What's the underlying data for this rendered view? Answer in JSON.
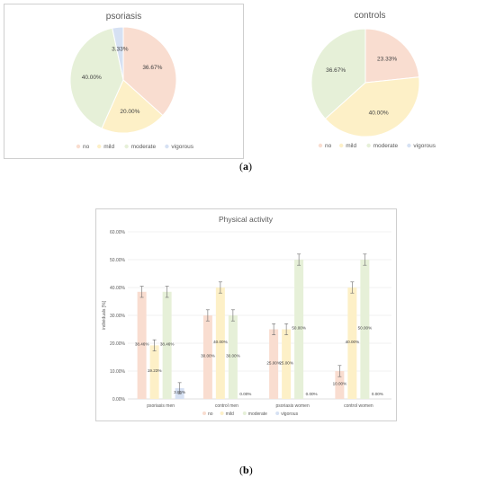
{
  "captions": {
    "a": "a",
    "b": "b"
  },
  "legend": [
    "no",
    "mild",
    "moderate",
    "vigorous"
  ],
  "colors": {
    "no": "#f9ddd0",
    "mild": "#fdf0c7",
    "moderate": "#e6f0d8",
    "vigorous": "#d6e1f3",
    "error_bar": "#6b6b6b"
  },
  "chart_data": [
    {
      "type": "pie",
      "title": "psoriasis",
      "labels": [
        "no",
        "mild",
        "moderate",
        "vigorous"
      ],
      "values": [
        36.67,
        20.0,
        40.0,
        3.33
      ],
      "value_labels": [
        "36.67%",
        "20.00%",
        "40.00%",
        "3.33%"
      ],
      "legend_position": "bottom"
    },
    {
      "type": "pie",
      "title": "controls",
      "labels": [
        "no",
        "mild",
        "moderate",
        "vigorous"
      ],
      "values": [
        23.33,
        40.0,
        36.67,
        0
      ],
      "value_labels": [
        "23.33%",
        "40.00%",
        "36.67%",
        ""
      ],
      "legend_position": "bottom"
    },
    {
      "type": "bar",
      "title": "Physical activity",
      "categories": [
        "psoriasis men",
        "control men",
        "psoriasis women",
        "control women"
      ],
      "series": [
        {
          "name": "no",
          "values": [
            38.46,
            30.0,
            25.0,
            10.0
          ],
          "value_labels": [
            "38.46%",
            "30.00%",
            "25.00%",
            "10.00%"
          ]
        },
        {
          "name": "mild",
          "values": [
            19.23,
            40.0,
            25.0,
            40.0
          ],
          "value_labels": [
            "19.23%",
            "40.00%",
            "25.00%",
            "40.00%"
          ]
        },
        {
          "name": "moderate",
          "values": [
            38.46,
            30.0,
            50.0,
            50.0
          ],
          "value_labels": [
            "38.46%",
            "30.00%",
            "50.00%",
            "50.00%"
          ]
        },
        {
          "name": "vigorous",
          "values": [
            3.85,
            0.0,
            0.0,
            0.0
          ],
          "value_labels": [
            "3.85%",
            "0.00%",
            "0.00%",
            "0.00%"
          ]
        }
      ],
      "error": 2,
      "ylabel": "individuals [%]",
      "ylim": [
        0,
        60
      ],
      "yticks": [
        "0.00%",
        "10.00%",
        "20.00%",
        "30.00%",
        "40.00%",
        "50.00%",
        "60.00%"
      ],
      "grid": true,
      "legend_position": "bottom"
    }
  ]
}
